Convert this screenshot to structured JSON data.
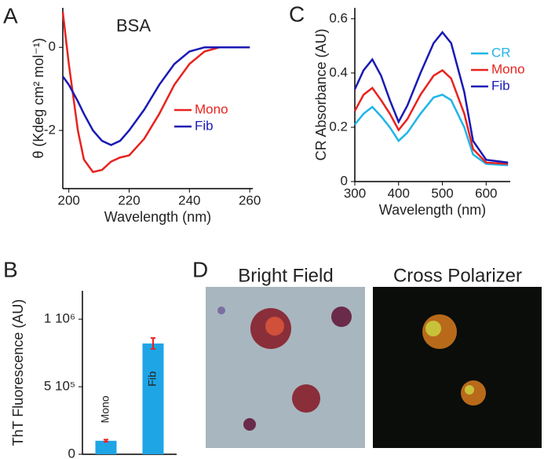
{
  "chart_data": [
    {
      "type": "line",
      "panel": "A",
      "title": "BSA",
      "xlabel": "Wavelength (nm)",
      "ylabel": "θ (Kdeg cm² mol⁻¹)",
      "x": [
        198,
        200,
        203,
        205,
        208,
        211,
        214,
        217,
        220,
        225,
        230,
        235,
        240,
        245,
        250,
        255,
        260
      ],
      "series": [
        {
          "name": "Mono",
          "color": "#e8231f",
          "values": [
            0.85,
            -0.4,
            -2.0,
            -2.7,
            -3.0,
            -2.95,
            -2.75,
            -2.65,
            -2.6,
            -2.2,
            -1.6,
            -0.9,
            -0.4,
            -0.1,
            0,
            0,
            0
          ]
        },
        {
          "name": "Fib",
          "color": "#1a1ab5",
          "values": [
            -0.7,
            -0.9,
            -1.3,
            -1.6,
            -2.0,
            -2.25,
            -2.35,
            -2.25,
            -2.0,
            -1.5,
            -0.9,
            -0.4,
            -0.1,
            0,
            0,
            0,
            0
          ]
        }
      ],
      "xlim": [
        198,
        261
      ],
      "xticks": [
        200,
        220,
        240,
        260
      ],
      "ylim": [
        -3.4,
        0.95
      ],
      "yticks": [
        -2,
        0
      ],
      "legend": "right"
    },
    {
      "type": "line",
      "panel": "C",
      "xlabel": "Wavelength (nm)",
      "ylabel": "CR Absorbance (AU)",
      "x": [
        300,
        320,
        340,
        360,
        380,
        400,
        420,
        450,
        480,
        500,
        520,
        550,
        570,
        600,
        650
      ],
      "series": [
        {
          "name": "CR",
          "color": "#1fb5e8",
          "values": [
            0.21,
            0.25,
            0.275,
            0.24,
            0.2,
            0.15,
            0.18,
            0.25,
            0.31,
            0.32,
            0.3,
            0.2,
            0.1,
            0.065,
            0.06
          ]
        },
        {
          "name": "Mono",
          "color": "#e8231f",
          "values": [
            0.26,
            0.32,
            0.345,
            0.3,
            0.25,
            0.19,
            0.23,
            0.32,
            0.39,
            0.41,
            0.38,
            0.25,
            0.12,
            0.07,
            0.065
          ]
        },
        {
          "name": "Fib",
          "color": "#1a1ab5",
          "values": [
            0.34,
            0.41,
            0.45,
            0.39,
            0.3,
            0.22,
            0.28,
            0.4,
            0.51,
            0.55,
            0.51,
            0.33,
            0.15,
            0.08,
            0.07
          ]
        }
      ],
      "xlim": [
        300,
        655
      ],
      "xticks": [
        300,
        400,
        500,
        600
      ],
      "ylim": [
        0,
        0.64
      ],
      "yticks": [
        0,
        0.2,
        0.4,
        0.6
      ],
      "legend": "upper right"
    },
    {
      "type": "bar",
      "panel": "B",
      "ylabel": "ThT Fluorescence (AU)",
      "categories": [
        "Mono",
        "Fib"
      ],
      "values": [
        100000,
        820000
      ],
      "error": [
        8000,
        40000
      ],
      "color": "#1ea5e6",
      "error_color": "#e8231f",
      "ylim": [
        0,
        1210000
      ],
      "yticks": [
        0,
        {
          "value": 500000,
          "label": "5 10⁵"
        },
        {
          "value": 1000000,
          "label": "1 10⁶"
        }
      ]
    }
  ],
  "micrographs": {
    "panel": "D",
    "titles": [
      "Bright Field",
      "Cross Polarizer"
    ]
  }
}
